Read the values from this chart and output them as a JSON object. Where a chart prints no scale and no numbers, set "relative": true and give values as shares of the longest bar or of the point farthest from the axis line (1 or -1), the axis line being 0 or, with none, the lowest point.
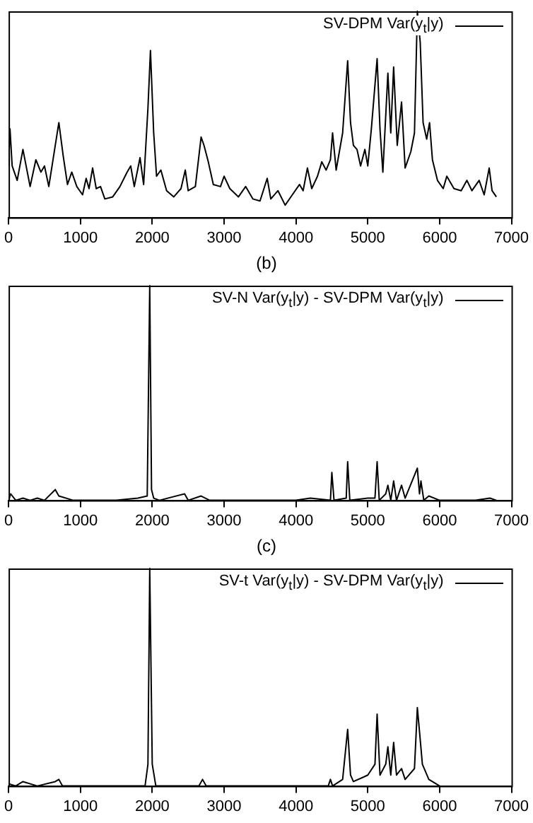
{
  "chart_data": [
    {
      "type": "line",
      "relative": true,
      "legend": "top right",
      "grid": false,
      "xlim": [
        0,
        7000
      ],
      "xticks": [
        0,
        1000,
        2000,
        3000,
        4000,
        5000,
        6000,
        7000
      ],
      "series": [
        {
          "name": "SV-DPM Var(y$_{t}$|y)",
          "color": "#000000",
          "x": [
            0,
            20,
            50,
            120,
            200,
            300,
            380,
            450,
            500,
            560,
            650,
            700,
            760,
            820,
            880,
            950,
            1030,
            1080,
            1120,
            1170,
            1220,
            1280,
            1340,
            1450,
            1550,
            1650,
            1700,
            1750,
            1830,
            1880,
            1940,
            1975,
            2020,
            2060,
            2120,
            2200,
            2300,
            2400,
            2460,
            2500,
            2600,
            2680,
            2720,
            2780,
            2850,
            2950,
            3000,
            3080,
            3200,
            3300,
            3400,
            3500,
            3600,
            3650,
            3750,
            3850,
            3950,
            4050,
            4100,
            4160,
            4220,
            4300,
            4360,
            4420,
            4480,
            4510,
            4560,
            4650,
            4720,
            4760,
            4800,
            4850,
            4900,
            4960,
            5000,
            5050,
            5130,
            5170,
            5210,
            5280,
            5320,
            5360,
            5410,
            5470,
            5520,
            5600,
            5650,
            5690,
            5730,
            5770,
            5820,
            5860,
            5900,
            5970,
            6050,
            6100,
            6200,
            6300,
            6380,
            6450,
            6550,
            6620,
            6690,
            6730,
            6790
          ],
          "values": [
            0.25,
            0.43,
            0.25,
            0.18,
            0.33,
            0.15,
            0.28,
            0.22,
            0.25,
            0.15,
            0.35,
            0.46,
            0.3,
            0.16,
            0.22,
            0.15,
            0.11,
            0.19,
            0.14,
            0.24,
            0.14,
            0.15,
            0.09,
            0.1,
            0.15,
            0.22,
            0.25,
            0.15,
            0.29,
            0.16,
            0.53,
            0.81,
            0.41,
            0.2,
            0.23,
            0.13,
            0.1,
            0.14,
            0.23,
            0.13,
            0.15,
            0.39,
            0.35,
            0.27,
            0.16,
            0.15,
            0.2,
            0.14,
            0.1,
            0.15,
            0.09,
            0.08,
            0.19,
            0.09,
            0.13,
            0.06,
            0.11,
            0.16,
            0.13,
            0.24,
            0.14,
            0.2,
            0.27,
            0.23,
            0.28,
            0.41,
            0.23,
            0.41,
            0.76,
            0.46,
            0.35,
            0.33,
            0.25,
            0.33,
            0.25,
            0.43,
            0.77,
            0.43,
            0.22,
            0.7,
            0.41,
            0.73,
            0.35,
            0.56,
            0.24,
            0.32,
            0.41,
            1.0,
            0.85,
            0.46,
            0.38,
            0.46,
            0.28,
            0.18,
            0.14,
            0.2,
            0.14,
            0.13,
            0.18,
            0.13,
            0.18,
            0.11,
            0.24,
            0.13,
            0.1
          ]
        }
      ]
    },
    {
      "type": "line",
      "title": "(b)",
      "relative": true,
      "legend": "top right",
      "grid": false,
      "xlim": [
        0,
        7000
      ],
      "xticks": [
        0,
        1000,
        2000,
        3000,
        4000,
        5000,
        6000,
        7000
      ],
      "series": [
        {
          "name": "SV-N Var(y$_{t}$|y) - SV-DPM Var(y$_{t}$|y)",
          "color": "#000000",
          "x": [
            0,
            30,
            100,
            200,
            300,
            400,
            500,
            650,
            700,
            900,
            1200,
            1500,
            1800,
            1930,
            1965,
            1990,
            2020,
            2100,
            2450,
            2500,
            2680,
            2800,
            3000,
            3500,
            4000,
            4200,
            4480,
            4500,
            4530,
            4700,
            4720,
            4750,
            5000,
            5100,
            5130,
            5160,
            5250,
            5280,
            5320,
            5360,
            5400,
            5470,
            5520,
            5690,
            5720,
            5740,
            5780,
            5850,
            6000,
            6500,
            6700,
            6790
          ],
          "values": [
            0.0,
            0.03,
            0.0,
            0.01,
            0.0,
            0.01,
            0.0,
            0.05,
            0.02,
            0.0,
            0.0,
            0.0,
            0.01,
            0.02,
            1.0,
            0.05,
            0.01,
            0.0,
            0.03,
            0.0,
            0.02,
            0.0,
            0.0,
            0.0,
            0.0,
            0.01,
            0.0,
            0.13,
            0.0,
            0.01,
            0.18,
            0.0,
            0.01,
            0.01,
            0.18,
            0.0,
            0.03,
            0.07,
            0.0,
            0.09,
            0.0,
            0.07,
            0.01,
            0.15,
            0.03,
            0.09,
            0.0,
            0.02,
            0.0,
            0.0,
            0.01,
            0.0
          ]
        }
      ]
    },
    {
      "type": "line",
      "title": "(c)",
      "relative": true,
      "legend": "top right",
      "grid": false,
      "xlim": [
        0,
        7000
      ],
      "xticks": [
        0,
        1000,
        2000,
        3000,
        4000,
        5000,
        6000,
        7000
      ],
      "series": [
        {
          "name": "SV-t Var(y$_{t}$|y) - SV-DPM Var(y$_{t}$|y)",
          "color": "#000000",
          "x": [
            0,
            100,
            200,
            400,
            650,
            700,
            750,
            1900,
            1940,
            1965,
            2000,
            2050,
            2650,
            2700,
            2750,
            4450,
            4480,
            4510,
            4650,
            4720,
            4760,
            4800,
            5000,
            5100,
            5130,
            5170,
            5250,
            5280,
            5320,
            5360,
            5400,
            5470,
            5520,
            5650,
            5690,
            5720,
            5760,
            5850,
            6000
          ],
          "values": [
            0.01,
            0.0,
            0.02,
            0.0,
            0.02,
            0.03,
            0.0,
            0.0,
            0.1,
            1.0,
            0.1,
            0.0,
            0.0,
            0.03,
            0.0,
            0.0,
            0.03,
            0.0,
            0.03,
            0.26,
            0.05,
            0.02,
            0.05,
            0.1,
            0.33,
            0.05,
            0.1,
            0.18,
            0.05,
            0.2,
            0.05,
            0.08,
            0.03,
            0.08,
            0.36,
            0.25,
            0.1,
            0.03,
            0.0
          ]
        }
      ]
    }
  ]
}
